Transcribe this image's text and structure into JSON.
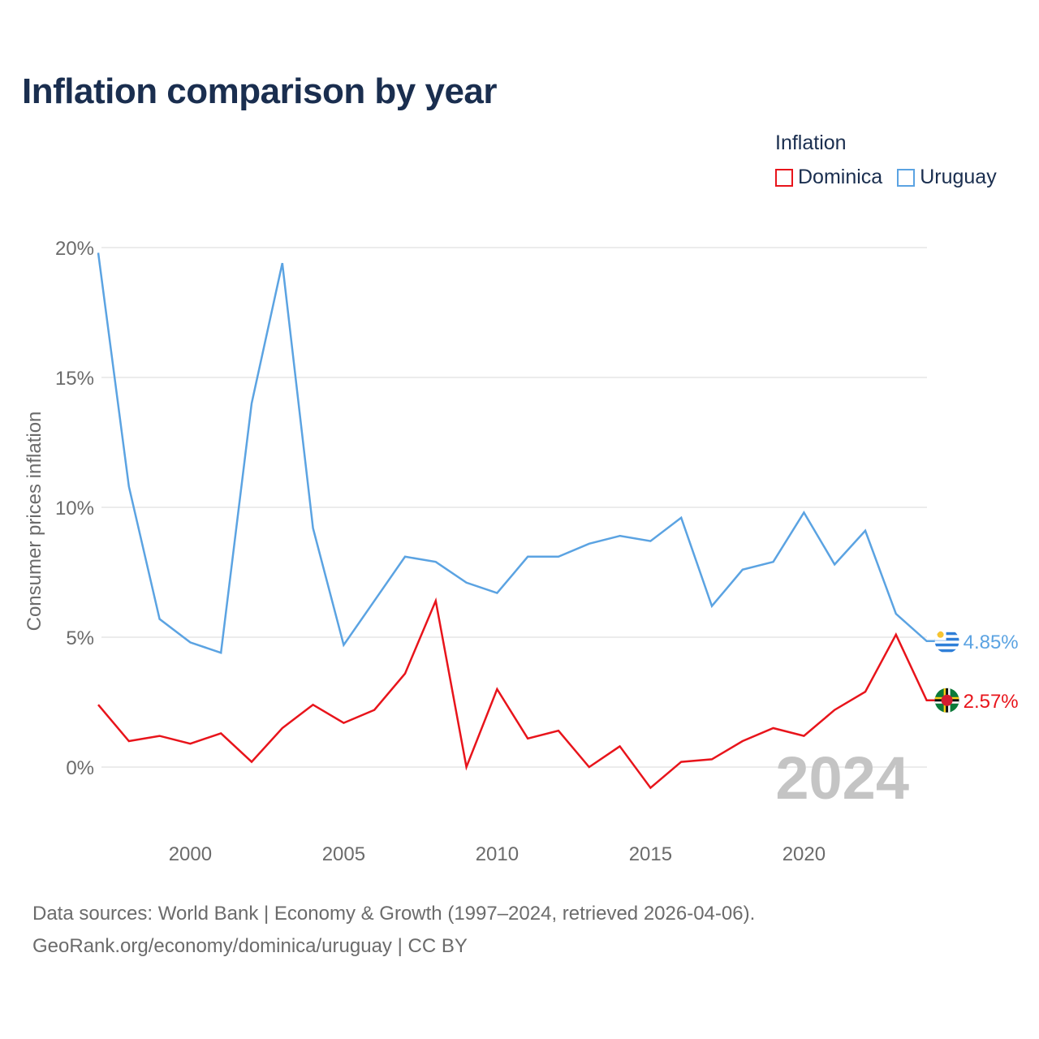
{
  "title": "Inflation comparison by year",
  "legend": {
    "title": "Inflation",
    "items": [
      {
        "label": "Dominica",
        "color": "#e8141b"
      },
      {
        "label": "Uruguay",
        "color": "#5ba3e2"
      }
    ]
  },
  "watermark_year": "2024",
  "footer": {
    "line1": "Data sources: World Bank | Economy & Growth (1997–2024, retrieved 2026-04-06).",
    "line2": "GeoRank.org/economy/dominica/uruguay | CC BY"
  },
  "chart_data": {
    "type": "line",
    "title": "Inflation comparison by year",
    "xlabel": "",
    "ylabel": "Consumer prices inflation",
    "xlim": [
      1997,
      2024
    ],
    "ylim": [
      -2,
      20
    ],
    "x_ticks": [
      2000,
      2005,
      2010,
      2015,
      2020
    ],
    "y_ticks": [
      {
        "value": 0,
        "label": "0%"
      },
      {
        "value": 5,
        "label": "5%"
      },
      {
        "value": 10,
        "label": "10%"
      },
      {
        "value": 15,
        "label": "15%"
      },
      {
        "value": 20,
        "label": "20%"
      }
    ],
    "grid": true,
    "legend_position": "top-right",
    "x": [
      1997,
      1998,
      1999,
      2000,
      2001,
      2002,
      2003,
      2004,
      2005,
      2006,
      2007,
      2008,
      2009,
      2010,
      2011,
      2012,
      2013,
      2014,
      2015,
      2016,
      2017,
      2018,
      2019,
      2020,
      2021,
      2022,
      2023,
      2024
    ],
    "series": [
      {
        "name": "Uruguay",
        "color": "#5ba3e2",
        "end_label": "4.85%",
        "flag": "uruguay-flag",
        "values": [
          19.8,
          10.8,
          5.7,
          4.8,
          4.4,
          14.0,
          19.4,
          9.2,
          4.7,
          6.4,
          8.1,
          7.9,
          7.1,
          6.7,
          8.1,
          8.1,
          8.6,
          8.9,
          8.7,
          9.6,
          6.2,
          7.6,
          7.9,
          9.8,
          7.8,
          9.1,
          5.9,
          4.85
        ]
      },
      {
        "name": "Dominica",
        "color": "#e8141b",
        "end_label": "2.57%",
        "flag": "dominica-flag",
        "values": [
          2.4,
          1.0,
          1.2,
          0.9,
          1.3,
          0.2,
          1.5,
          2.4,
          1.7,
          2.2,
          3.6,
          6.4,
          0.0,
          3.0,
          1.1,
          1.4,
          0.0,
          0.8,
          -0.8,
          0.2,
          0.3,
          1.0,
          1.5,
          1.2,
          2.2,
          2.9,
          5.1,
          2.57
        ]
      }
    ]
  }
}
